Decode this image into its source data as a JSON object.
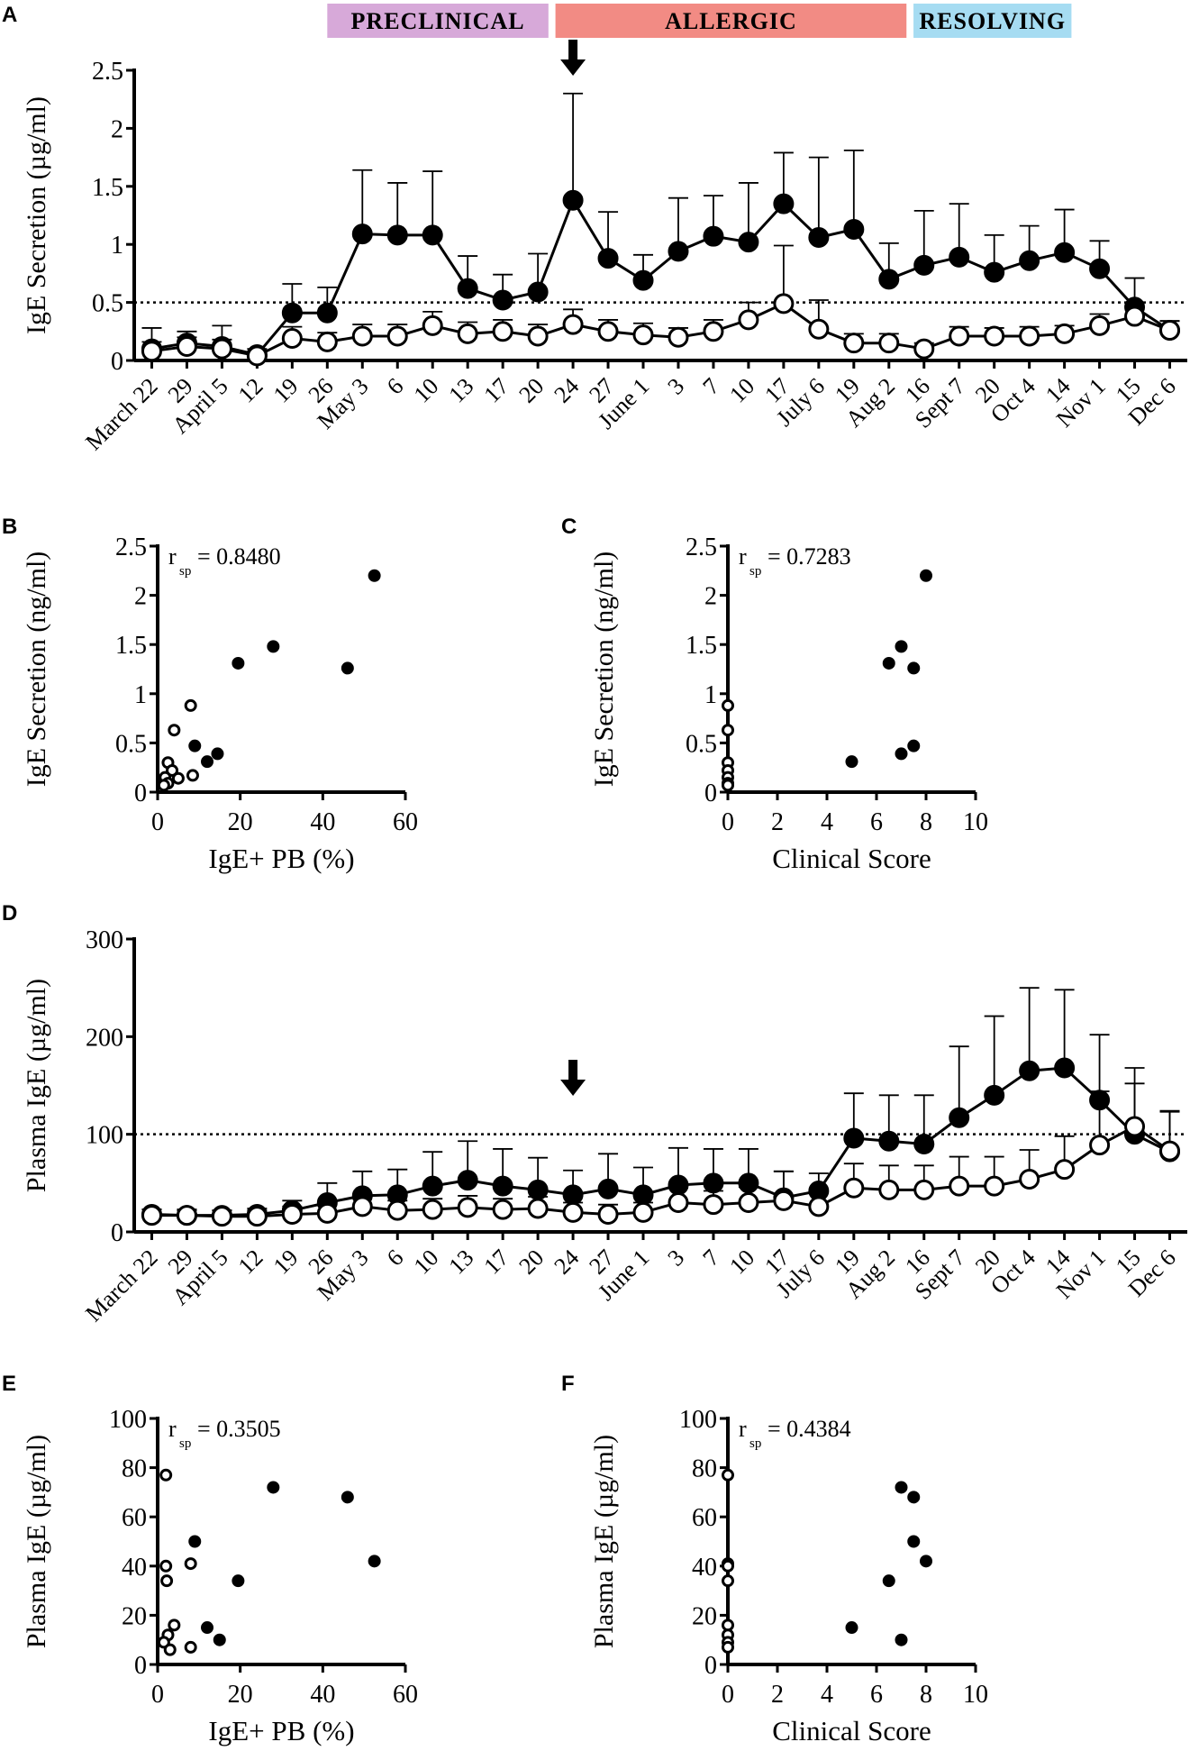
{
  "figure": {
    "panels": {
      "A": {
        "label": "A"
      },
      "B": {
        "label": "B"
      },
      "C": {
        "label": "C"
      },
      "D": {
        "label": "D"
      },
      "E": {
        "label": "E"
      },
      "F": {
        "label": "F"
      }
    },
    "phases": [
      {
        "label": "PRECLINICAL",
        "color": "#d7a9d9",
        "start": 5,
        "end": 11.3
      },
      {
        "label": "ALLERGIC",
        "color": "#f28b84",
        "start": 11.5,
        "end": 21.5
      },
      {
        "label": "RESOLVING",
        "color": "#a6dcf2",
        "start": 21.7,
        "end": 26.2
      }
    ],
    "colors": {
      "filled": "#000000",
      "open": "#ffffff"
    }
  },
  "chart_data": [
    {
      "id": "A",
      "type": "line",
      "ylabel": "IgE Secretion (µg/ml)",
      "xlabel": "",
      "ylim": [
        0,
        2.5
      ],
      "yticks": [
        "0",
        "0.5",
        "1",
        "1.5",
        "2",
        "2.5"
      ],
      "categories": [
        "March 22",
        "29",
        "April 5",
        "12",
        "19",
        "26",
        "May 3",
        "6",
        "10",
        "13",
        "17",
        "20",
        "24",
        "27",
        "June 1",
        "3",
        "7",
        "10",
        "17",
        "July 6",
        "19",
        "Aug 2",
        "16",
        "Sept 7",
        "20",
        "Oct 4",
        "14",
        "Nov 1",
        "15",
        "Dec 6"
      ],
      "threshold": 0.5,
      "arrow_index": 12,
      "series": [
        {
          "name": "filled",
          "values": [
            0.1,
            0.15,
            0.12,
            0.05,
            0.41,
            0.41,
            1.09,
            1.08,
            1.08,
            0.62,
            0.52,
            0.59,
            1.38,
            0.88,
            0.69,
            0.94,
            1.07,
            1.02,
            1.35,
            1.06,
            1.13,
            0.7,
            0.82,
            0.89,
            0.76,
            0.86,
            0.93,
            0.79,
            0.46,
            0.26
          ],
          "errors": [
            0.18,
            0.1,
            0.18,
            0.05,
            0.25,
            0.22,
            0.55,
            0.45,
            0.55,
            0.28,
            0.22,
            0.33,
            0.92,
            0.4,
            0.22,
            0.46,
            0.35,
            0.51,
            0.44,
            0.69,
            0.68,
            0.31,
            0.47,
            0.46,
            0.32,
            0.3,
            0.37,
            0.24,
            0.25,
            0.08
          ]
        },
        {
          "name": "open",
          "values": [
            0.08,
            0.12,
            0.1,
            0.04,
            0.19,
            0.16,
            0.21,
            0.21,
            0.3,
            0.23,
            0.25,
            0.21,
            0.31,
            0.25,
            0.22,
            0.2,
            0.25,
            0.35,
            0.49,
            0.27,
            0.15,
            0.15,
            0.1,
            0.21,
            0.21,
            0.21,
            0.23,
            0.3,
            0.38,
            0.26
          ],
          "errors": [
            0.08,
            0.08,
            0.08,
            0.04,
            0.1,
            0.08,
            0.1,
            0.1,
            0.12,
            0.1,
            0.1,
            0.1,
            0.13,
            0.1,
            0.1,
            0.08,
            0.1,
            0.15,
            0.5,
            0.25,
            0.08,
            0.08,
            0.05,
            0.08,
            0.07,
            0.08,
            0.07,
            0.1,
            0.1,
            0.08
          ]
        }
      ]
    },
    {
      "id": "B",
      "type": "scatter",
      "stat": "= 0.8480",
      "stat_symbol": "r",
      "stat_sub": "sp",
      "xlabel": "IgE+ PB (%)",
      "ylabel": "IgE Secretion (ng/ml)",
      "xlim": [
        0,
        60
      ],
      "ylim": [
        0,
        2.5
      ],
      "xticks": [
        "0",
        "20",
        "40",
        "60"
      ],
      "yticks": [
        "0",
        "0.5",
        "1",
        "1.5",
        "2",
        "2.5"
      ],
      "series": [
        {
          "name": "filled",
          "points": [
            [
              52.5,
              2.2
            ],
            [
              28,
              1.48
            ],
            [
              19.5,
              1.31
            ],
            [
              46,
              1.26
            ],
            [
              9,
              0.47
            ],
            [
              14.5,
              0.39
            ],
            [
              12,
              0.31
            ]
          ]
        },
        {
          "name": "open",
          "points": [
            [
              8,
              0.88
            ],
            [
              4,
              0.63
            ],
            [
              2.5,
              0.3
            ],
            [
              3.5,
              0.22
            ],
            [
              1.8,
              0.15
            ],
            [
              5,
              0.14
            ],
            [
              8.5,
              0.17
            ],
            [
              2.5,
              0.09
            ],
            [
              1.5,
              0.07
            ]
          ]
        }
      ]
    },
    {
      "id": "C",
      "type": "scatter",
      "stat": "= 0.7283",
      "stat_symbol": "r",
      "stat_sub": "sp",
      "xlabel": "Clinical Score",
      "ylabel": "IgE Secretion (ng/ml)",
      "xlim": [
        0,
        10
      ],
      "ylim": [
        0,
        2.5
      ],
      "xticks": [
        "0",
        "2",
        "4",
        "6",
        "8",
        "10"
      ],
      "yticks": [
        "0",
        "0.5",
        "1",
        "1.5",
        "2",
        "2.5"
      ],
      "series": [
        {
          "name": "filled",
          "points": [
            [
              8,
              2.2
            ],
            [
              7,
              1.48
            ],
            [
              6.5,
              1.31
            ],
            [
              7.5,
              1.26
            ],
            [
              7.5,
              0.47
            ],
            [
              7,
              0.39
            ],
            [
              5,
              0.31
            ]
          ]
        },
        {
          "name": "open",
          "points": [
            [
              0,
              0.88
            ],
            [
              0,
              0.63
            ],
            [
              0,
              0.3
            ],
            [
              0,
              0.22
            ],
            [
              0,
              0.15
            ],
            [
              0,
              0.09
            ],
            [
              0,
              0.07
            ]
          ]
        }
      ]
    },
    {
      "id": "D",
      "type": "line",
      "ylabel": "Plasma IgE (µg/ml)",
      "xlabel": "",
      "ylim": [
        0,
        300
      ],
      "yticks": [
        "0",
        "100",
        "200",
        "300"
      ],
      "categories": [
        "March 22",
        "29",
        "April 5",
        "12",
        "19",
        "26",
        "May 3",
        "6",
        "10",
        "13",
        "17",
        "20",
        "24",
        "27",
        "June 1",
        "3",
        "7",
        "10",
        "17",
        "July 6",
        "19",
        "Aug 2",
        "16",
        "Sept 7",
        "20",
        "Oct 4",
        "14",
        "Nov 1",
        "15",
        "Dec 6"
      ],
      "threshold": 100,
      "arrow_index": 12,
      "series": [
        {
          "name": "filled",
          "values": [
            18,
            17,
            17,
            18,
            22,
            30,
            37,
            38,
            47,
            53,
            47,
            43,
            38,
            44,
            38,
            48,
            50,
            50,
            35,
            42,
            96,
            93,
            90,
            117,
            140,
            165,
            168,
            135,
            100,
            82
          ],
          "errors": [
            5,
            5,
            5,
            6,
            10,
            20,
            25,
            26,
            35,
            40,
            38,
            33,
            25,
            36,
            28,
            38,
            35,
            35,
            27,
            18,
            46,
            47,
            50,
            73,
            81,
            85,
            80,
            67,
            52,
            42
          ]
        },
        {
          "name": "open",
          "values": [
            17,
            17,
            16,
            16,
            18,
            19,
            26,
            22,
            23,
            25,
            23,
            24,
            20,
            18,
            20,
            30,
            28,
            30,
            32,
            26,
            45,
            43,
            43,
            47,
            47,
            54,
            64,
            89,
            108,
            83
          ],
          "errors": [
            6,
            6,
            6,
            6,
            8,
            10,
            12,
            10,
            11,
            12,
            11,
            12,
            10,
            10,
            10,
            15,
            14,
            16,
            30,
            14,
            25,
            25,
            25,
            30,
            30,
            30,
            34,
            55,
            60,
            40
          ]
        }
      ]
    },
    {
      "id": "E",
      "type": "scatter",
      "stat": "= 0.3505",
      "stat_symbol": "r",
      "stat_sub": "sp",
      "xlabel": "IgE+ PB (%)",
      "ylabel": "Plasma IgE (µg/ml)",
      "xlim": [
        0,
        60
      ],
      "ylim": [
        0,
        100
      ],
      "xticks": [
        "0",
        "20",
        "40",
        "60"
      ],
      "yticks": [
        "0",
        "20",
        "40",
        "60",
        "80",
        "100"
      ],
      "series": [
        {
          "name": "filled",
          "points": [
            [
              28,
              72
            ],
            [
              46,
              68
            ],
            [
              52.5,
              42
            ],
            [
              9,
              50
            ],
            [
              19.5,
              34
            ],
            [
              12,
              15
            ],
            [
              15,
              10
            ]
          ]
        },
        {
          "name": "open",
          "points": [
            [
              2,
              77
            ],
            [
              2,
              40
            ],
            [
              8,
              41
            ],
            [
              2.2,
              34
            ],
            [
              4,
              16
            ],
            [
              2.5,
              12
            ],
            [
              1.5,
              9
            ],
            [
              8,
              7
            ],
            [
              3,
              6
            ]
          ]
        }
      ]
    },
    {
      "id": "F",
      "type": "scatter",
      "stat": "= 0.4384",
      "stat_symbol": "r",
      "stat_sub": "sp",
      "xlabel": "Clinical Score",
      "ylabel": "Plasma IgE (µg/ml)",
      "xlim": [
        0,
        10
      ],
      "ylim": [
        0,
        100
      ],
      "xticks": [
        "0",
        "2",
        "4",
        "6",
        "8",
        "10"
      ],
      "yticks": [
        "0",
        "20",
        "40",
        "60",
        "80",
        "100"
      ],
      "series": [
        {
          "name": "filled",
          "points": [
            [
              7,
              72
            ],
            [
              7.5,
              68
            ],
            [
              7.5,
              50
            ],
            [
              8,
              42
            ],
            [
              6.5,
              34
            ],
            [
              5,
              15
            ],
            [
              7,
              10
            ]
          ]
        },
        {
          "name": "open",
          "points": [
            [
              0,
              77
            ],
            [
              0,
              41
            ],
            [
              0,
              40
            ],
            [
              0,
              34
            ],
            [
              0,
              16
            ],
            [
              0,
              12
            ],
            [
              0,
              9
            ],
            [
              0,
              7
            ]
          ]
        }
      ]
    }
  ]
}
